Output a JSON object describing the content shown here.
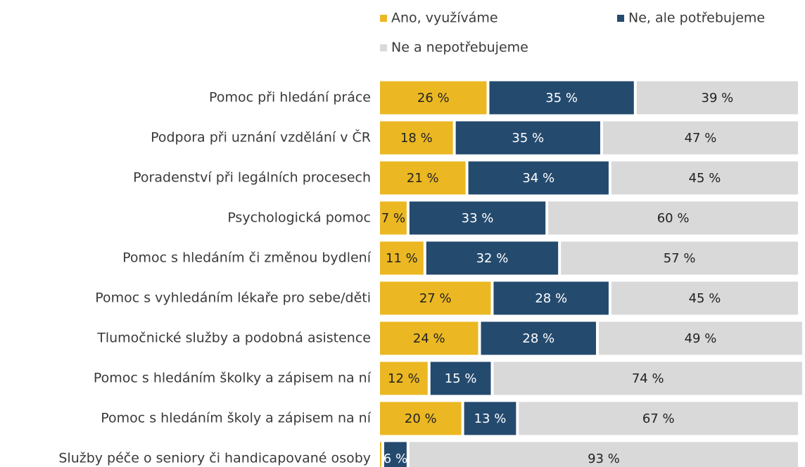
{
  "chart_data": {
    "type": "stacked-bar-horizontal",
    "categories": [
      "Pomoc při hledání práce",
      "Podpora při uznání vzdělání v ČR",
      "Poradenství při legálních procesech",
      "Psychologická pomoc",
      "Pomoc s hledáním či změnou bydlení",
      "Pomoc s vyhledáním lékaře pro sebe/děti",
      "Tlumočnické služby a podobná asistence",
      "Pomoc s hledáním školky a zápisem na ní",
      "Pomoc s hledáním školy a zápisem na ní",
      "Služby péče o seniory či handicapované osoby"
    ],
    "series": [
      {
        "name": "Ano, využíváme",
        "color": "#ebb823",
        "values": [
          26,
          18,
          21,
          7,
          11,
          27,
          24,
          12,
          20,
          1
        ],
        "value_labels": [
          "26 %",
          "18 %",
          "21 %",
          "7 %",
          "11 %",
          "27 %",
          "24 %",
          "12 %",
          "20 %",
          null
        ]
      },
      {
        "name": "Ne, ale potřebujeme",
        "color": "#244a6e",
        "values": [
          35,
          35,
          34,
          33,
          32,
          28,
          28,
          15,
          13,
          6
        ],
        "value_labels": [
          "35 %",
          "35 %",
          "34 %",
          "33 %",
          "32 %",
          "28 %",
          "28 %",
          "15 %",
          "13 %",
          "6 %"
        ]
      },
      {
        "name": "Ne a nepotřebujeme",
        "color": "#d9d9d9",
        "values": [
          39,
          47,
          45,
          60,
          57,
          45,
          49,
          74,
          67,
          93
        ],
        "value_labels": [
          "39 %",
          "47 %",
          "45 %",
          "60 %",
          "57 %",
          "45 %",
          "49 %",
          "74 %",
          "67 %",
          "93 %"
        ]
      }
    ],
    "legend": "top"
  }
}
